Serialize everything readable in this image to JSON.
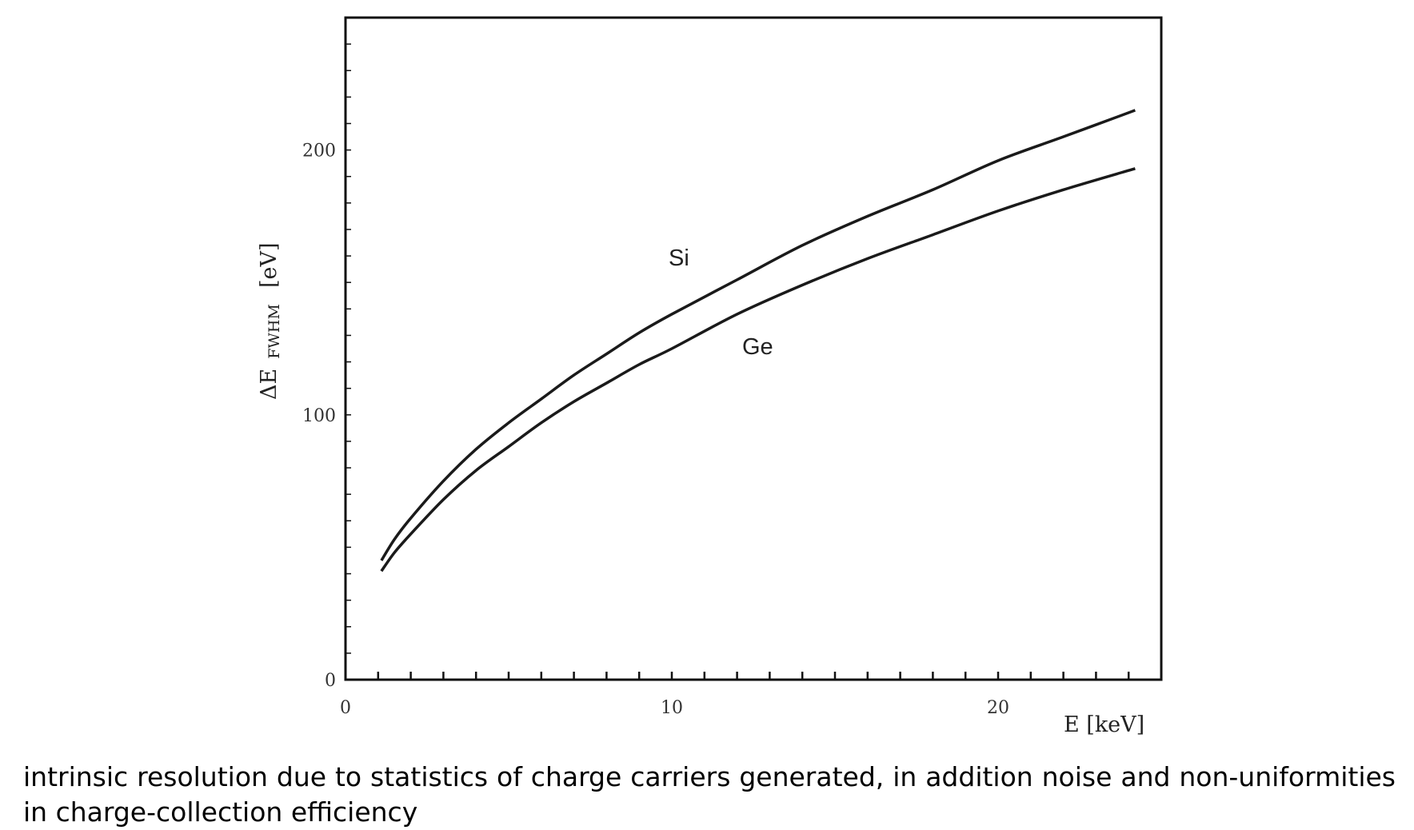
{
  "chart_data": {
    "type": "line",
    "title": "",
    "xlabel": "E  [keV]",
    "ylabel": "ΔE",
    "ylabel_subscript": "FWHM",
    "ylabel_unit": "[eV]",
    "xlim": [
      0,
      25
    ],
    "ylim": [
      0,
      250
    ],
    "x_ticks": [
      "0",
      "10",
      "20"
    ],
    "y_ticks": [
      "0",
      "100",
      "200"
    ],
    "x_tick_values": [
      0,
      10,
      20
    ],
    "y_tick_values": [
      0,
      100,
      200
    ],
    "x_minor_step": 1,
    "y_minor_step": 10,
    "grid": false,
    "series": [
      {
        "name": "Si",
        "x": [
          1.1,
          1.5,
          2,
          3,
          4,
          5,
          6,
          7,
          8,
          9,
          10,
          12,
          14,
          16,
          18,
          20,
          22,
          24.2
        ],
        "y": [
          45,
          53,
          61,
          75,
          87,
          97,
          106,
          115,
          123,
          131,
          138,
          151,
          164,
          175,
          185,
          196,
          205,
          215
        ]
      },
      {
        "name": "Ge",
        "x": [
          1.1,
          1.5,
          2,
          3,
          4,
          5,
          6,
          7,
          8,
          9,
          10,
          12,
          14,
          16,
          18,
          20,
          22,
          24.2
        ],
        "y": [
          41,
          48,
          55,
          68,
          79,
          88,
          97,
          105,
          112,
          119,
          125,
          138,
          149,
          159,
          168,
          177,
          185,
          193
        ]
      }
    ]
  },
  "caption": "intrinsic resolution due to statistics of charge carriers generated, in addition noise and non-uniformities in charge-collection efficiency"
}
